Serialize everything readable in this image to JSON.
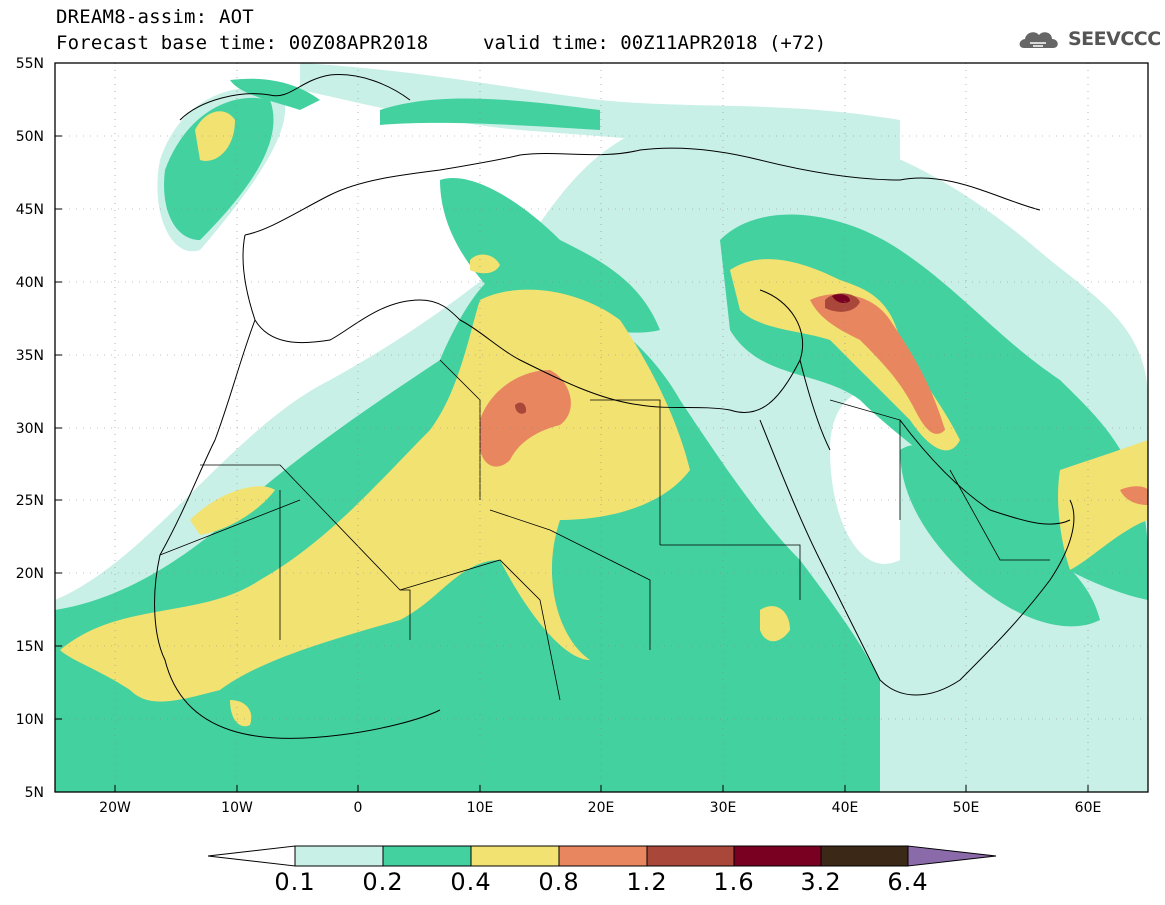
{
  "header": {
    "line1": "DREAM8-assim: AOT",
    "line2": "Forecast base time: 00Z08APR2018",
    "line3": "valid time: 00Z11APR2018 (+72)",
    "logo_text": "SEEVCCC"
  },
  "axes": {
    "lat_labels": [
      "55N",
      "50N",
      "45N",
      "40N",
      "35N",
      "30N",
      "25N",
      "20N",
      "15N",
      "10N",
      "5N"
    ],
    "lon_labels": [
      "20W",
      "10W",
      "0",
      "10E",
      "20E",
      "30E",
      "40E",
      "50E",
      "60E"
    ]
  },
  "colorbar": {
    "labels": [
      "0.1",
      "0.2",
      "0.4",
      "0.8",
      "1.2",
      "1.6",
      "3.2",
      "6.4"
    ],
    "colors": [
      "#ffffff",
      "#c8f0e6",
      "#43d1a0",
      "#f2e272",
      "#e8875f",
      "#a8473a",
      "#7a0022",
      "#3b2817",
      "#8a6aa8"
    ]
  }
}
